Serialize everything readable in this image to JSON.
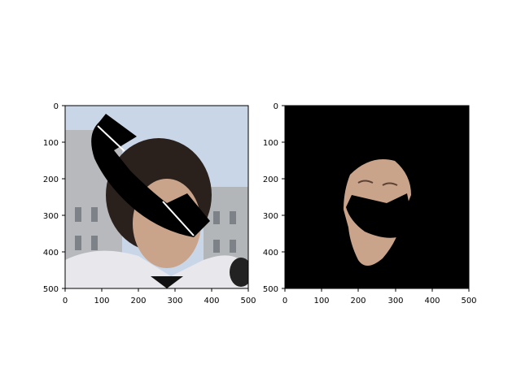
{
  "panels": [
    {
      "id": "left",
      "description_role": "original-with-mask",
      "x_ticks": [
        "0",
        "100",
        "200",
        "300",
        "400",
        "500"
      ],
      "y_ticks": [
        "0",
        "100",
        "200",
        "300",
        "400",
        "500"
      ]
    },
    {
      "id": "right",
      "description_role": "masked-face-region",
      "x_ticks": [
        "0",
        "100",
        "200",
        "300",
        "400",
        "500"
      ],
      "y_ticks": [
        "0",
        "100",
        "200",
        "300",
        "400",
        "500"
      ]
    }
  ],
  "colors": {
    "background": "#ffffff",
    "sky": "#c9d6e8",
    "building": "#b8bcc0",
    "hair": "#2a211c",
    "skin": "#caa48a",
    "jacket": "#e8e8ec",
    "mask": "#000000"
  }
}
